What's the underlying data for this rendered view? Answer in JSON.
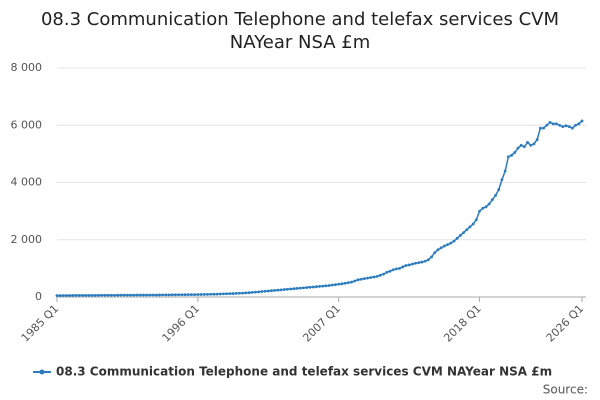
{
  "chart_data": {
    "type": "line",
    "title": "08.3 Communication Telephone and telefax services CVM NAYear NSA £m",
    "source": "Source:",
    "categories": [
      "1985 Q1",
      null,
      null,
      null,
      null,
      null,
      null,
      null,
      null,
      null,
      null,
      null,
      null,
      null,
      null,
      null,
      null,
      null,
      null,
      null,
      null,
      null,
      null,
      null,
      null,
      null,
      null,
      null,
      null,
      null,
      null,
      null,
      null,
      null,
      null,
      null,
      null,
      null,
      null,
      null,
      null,
      null,
      null,
      null,
      "1996 Q1",
      null,
      null,
      null,
      null,
      null,
      null,
      null,
      null,
      null,
      null,
      null,
      null,
      null,
      null,
      null,
      null,
      null,
      null,
      null,
      null,
      null,
      null,
      null,
      null,
      null,
      null,
      null,
      null,
      null,
      null,
      null,
      null,
      null,
      null,
      null,
      null,
      null,
      null,
      null,
      null,
      null,
      null,
      null,
      "2007 Q1",
      null,
      null,
      null,
      null,
      null,
      null,
      null,
      null,
      null,
      null,
      null,
      null,
      null,
      null,
      null,
      null,
      null,
      null,
      null,
      null,
      null,
      null,
      null,
      null,
      null,
      null,
      null,
      null,
      null,
      null,
      null,
      null,
      null,
      null,
      null,
      null,
      null,
      null,
      null,
      null,
      null,
      null,
      null,
      "2018 Q1",
      null,
      null,
      null,
      null,
      null,
      null,
      null,
      null,
      null,
      null,
      null,
      null,
      null,
      null,
      null,
      null,
      null,
      null,
      null,
      null,
      null,
      null,
      null,
      null,
      null,
      null,
      null,
      null,
      null,
      null,
      null,
      "2026 Q1"
    ],
    "series": [
      {
        "name": "08.3 Communication Telephone and telefax services CVM NAYear NSA £m",
        "color": "#2a7bbf",
        "values": [
          50,
          50,
          52,
          52,
          54,
          54,
          55,
          55,
          56,
          56,
          57,
          58,
          58,
          59,
          60,
          60,
          61,
          62,
          62,
          63,
          64,
          64,
          65,
          66,
          66,
          67,
          68,
          68,
          69,
          70,
          70,
          71,
          72,
          73,
          74,
          75,
          76,
          77,
          78,
          79,
          80,
          81,
          82,
          84,
          86,
          88,
          90,
          92,
          95,
          98,
          100,
          104,
          108,
          112,
          116,
          120,
          125,
          130,
          136,
          142,
          150,
          160,
          170,
          180,
          190,
          200,
          210,
          220,
          230,
          240,
          250,
          260,
          270,
          280,
          290,
          300,
          310,
          320,
          330,
          340,
          350,
          360,
          370,
          380,
          390,
          400,
          420,
          430,
          450,
          460,
          480,
          500,
          520,
          560,
          600,
          620,
          640,
          660,
          680,
          700,
          720,
          760,
          800,
          860,
          900,
          950,
          980,
          1000,
          1050,
          1100,
          1120,
          1150,
          1180,
          1200,
          1220,
          1250,
          1300,
          1400,
          1550,
          1650,
          1720,
          1780,
          1830,
          1880,
          1950,
          2050,
          2150,
          2250,
          2350,
          2450,
          2550,
          2700,
          3000,
          3100,
          3150,
          3250,
          3400,
          3550,
          3750,
          4100,
          4400,
          4900,
          4950,
          5050,
          5200,
          5300,
          5250,
          5400,
          5300,
          5350,
          5500,
          5900,
          5900,
          6000,
          6100,
          6050,
          6050,
          6000,
          5950,
          5980,
          5950,
          5900,
          6000,
          6050,
          6150
        ]
      }
    ],
    "ylim": [
      0,
      8000
    ],
    "yticks": [
      0,
      {
        "value": 2000,
        "label": "2 000"
      },
      {
        "value": 4000,
        "label": "4 000"
      },
      {
        "value": 6000,
        "label": "6 000"
      },
      {
        "value": 8000,
        "label": "8 000"
      }
    ],
    "grid": true
  }
}
